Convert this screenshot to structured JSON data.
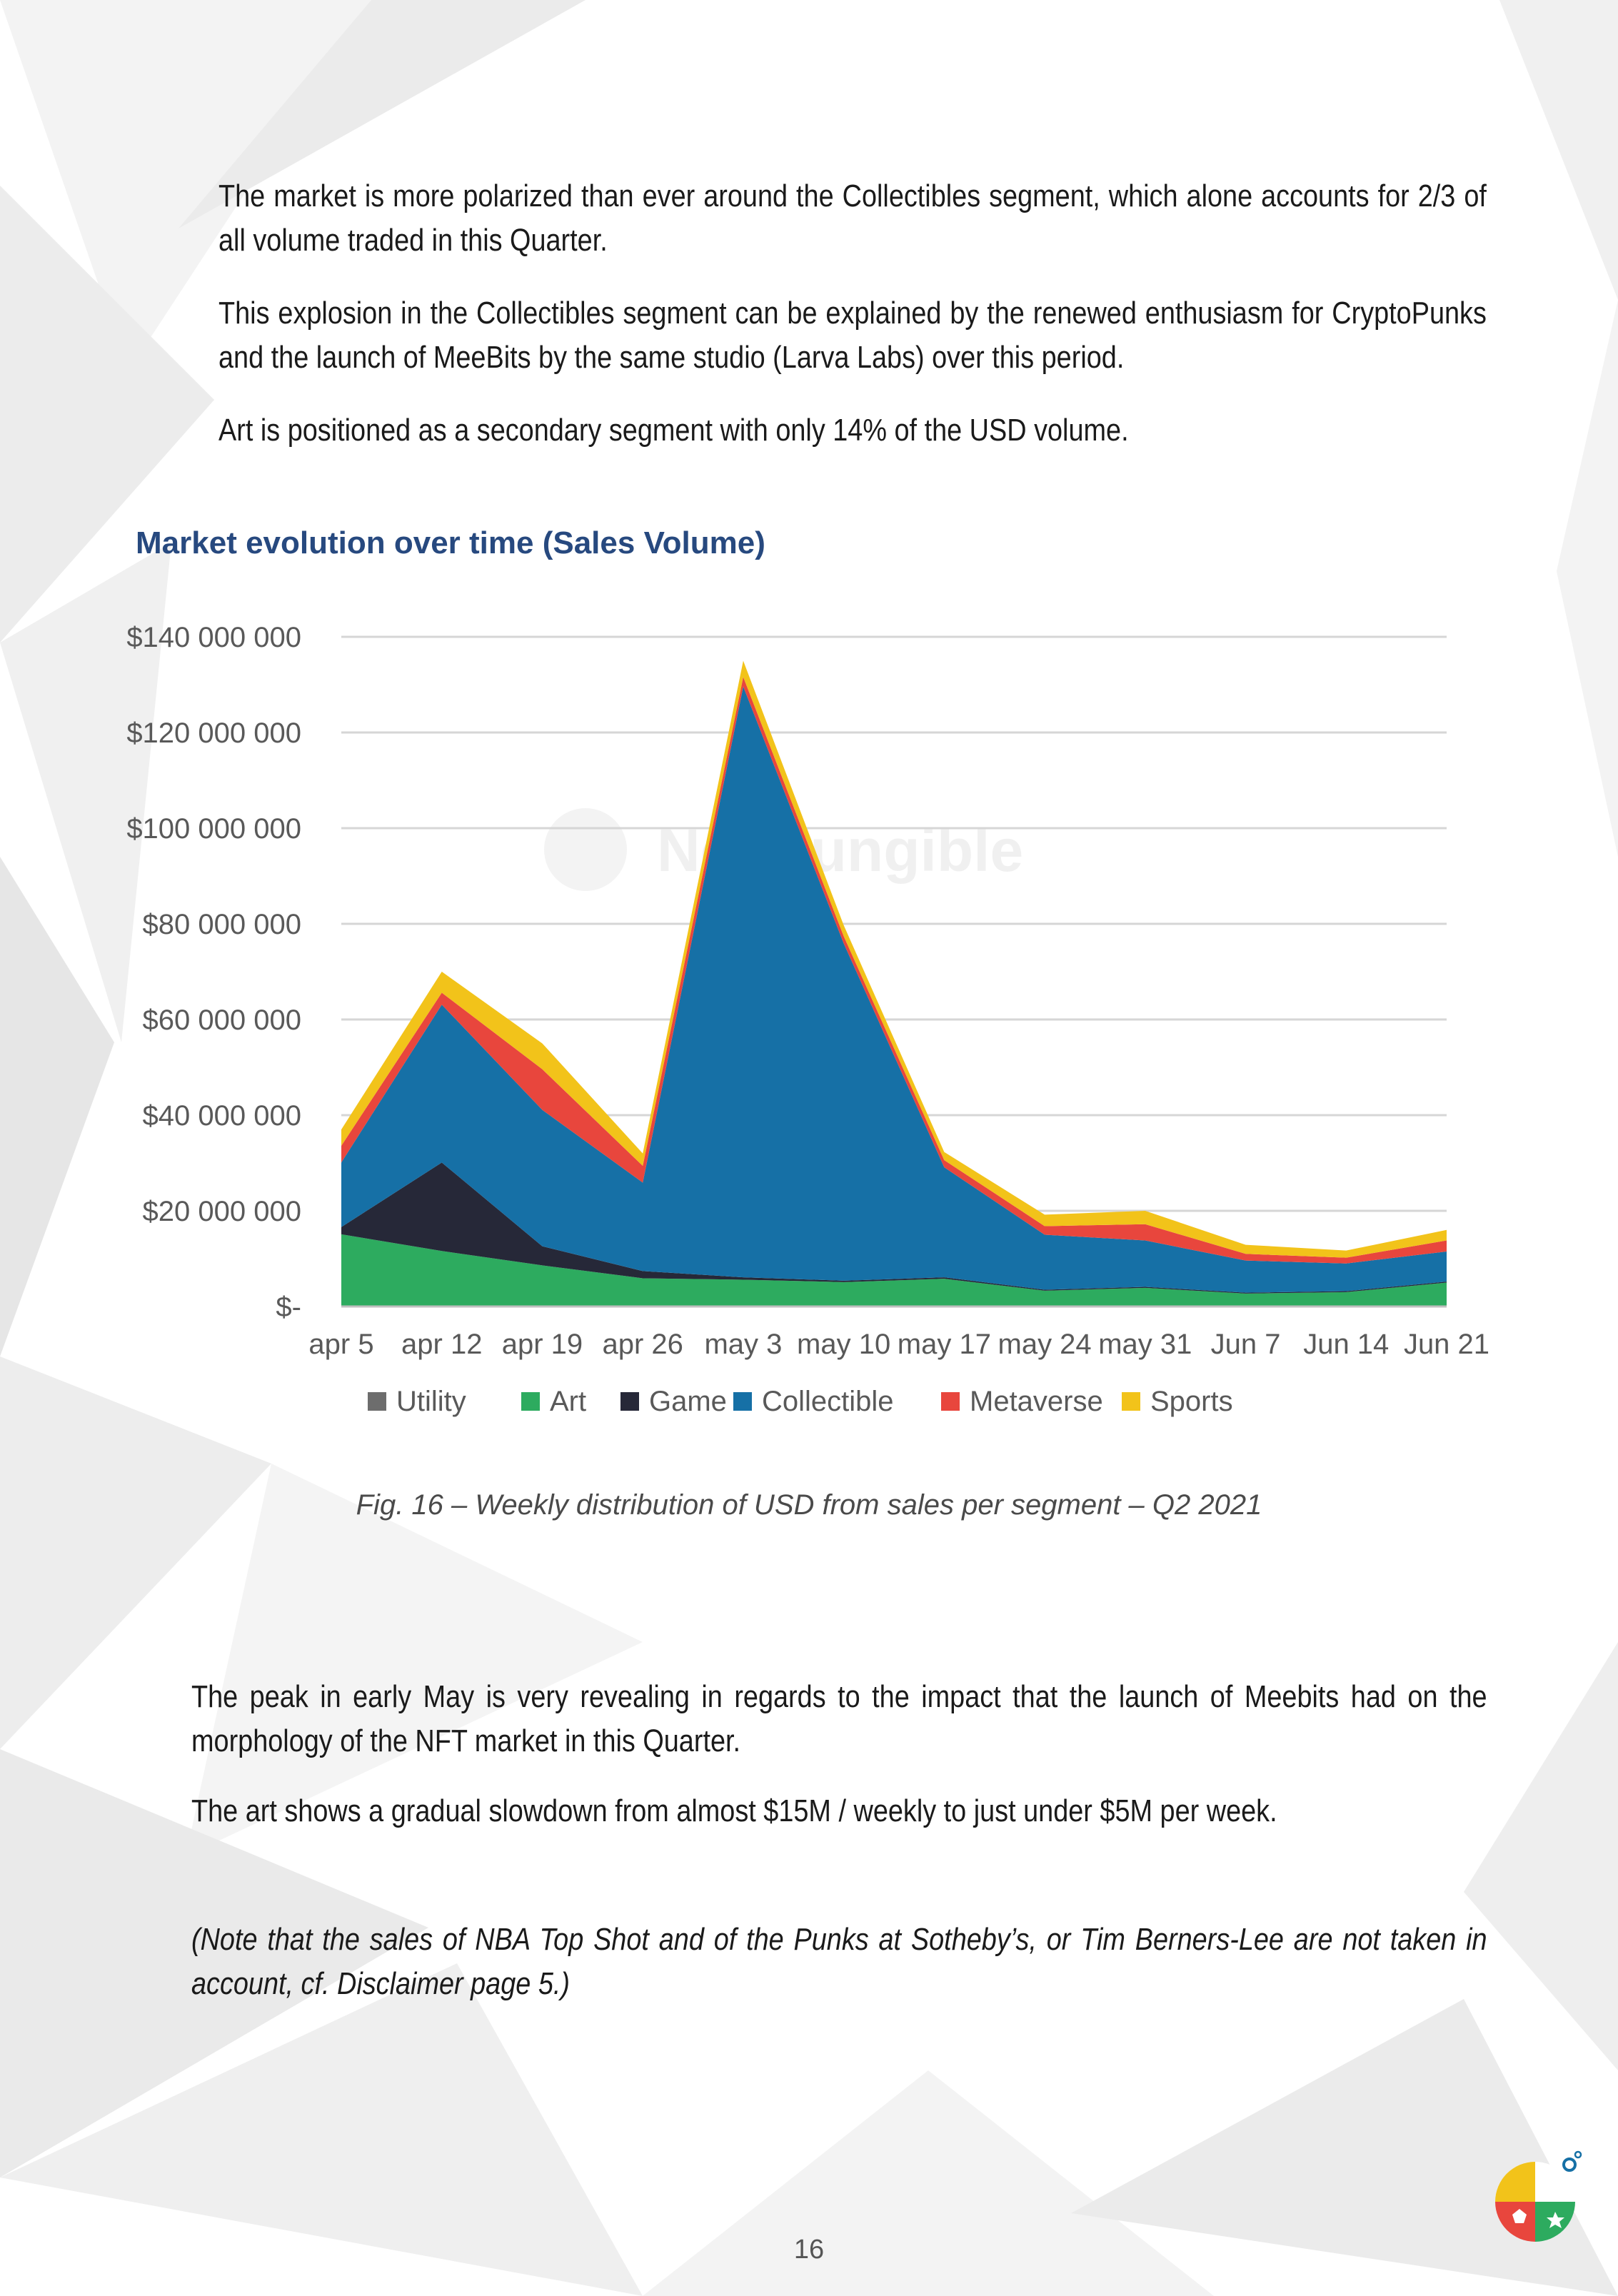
{
  "paragraphs_top": [
    "The market is more polarized than ever around the Collectibles segment, which alone accounts for 2/3 of all volume traded in this Quarter.",
    "This explosion in the Collectibles segment can be explained by the renewed enthusiasm for CryptoPunks and the launch of MeeBits by the same studio (Larva Labs) over this period.",
    "Art is positioned as a secondary segment with only 14% of the USD volume."
  ],
  "watermark": "NonFungible",
  "figure_caption": "Fig. 16 – Weekly distribution of USD from sales per segment – Q2 2021",
  "paragraphs_bottom": [
    "The peak in early May is very revealing in regards to the impact that the launch of Meebits had on the morphology of the NFT market in this Quarter.",
    "The art shows a gradual slowdown from almost $15M / weekly to just under $5M per week."
  ],
  "note": "(Note that the sales of NBA Top Shot and of the Punks at Sotheby’s, or Tim Berners-Lee are not taken in account, cf. Disclaimer page 5.)",
  "page_number": "16",
  "chart_data": {
    "type": "area",
    "stacked": true,
    "title": "Market evolution over time (Sales Volume)",
    "xlabel": "",
    "ylabel": "",
    "x": [
      "apr 5",
      "apr 12",
      "apr 19",
      "apr 26",
      "may 3",
      "may 10",
      "may 17",
      "may 24",
      "may 31",
      "Jun 7",
      "Jun 14",
      "Jun 21"
    ],
    "ylim": [
      0,
      140000000
    ],
    "y_ticks": [
      0,
      20000000,
      40000000,
      60000000,
      80000000,
      100000000,
      120000000,
      140000000
    ],
    "y_tick_labels": [
      "$-",
      "$20 000 000",
      "$40 000 000",
      "$60 000 000",
      "$80 000 000",
      "$100 000 000",
      "$120 000 000",
      "$140 000 000"
    ],
    "grid": true,
    "legend_position": "bottom",
    "series": [
      {
        "name": "Utility",
        "color": "#6d6d6d",
        "values": [
          100000,
          100000,
          100000,
          100000,
          100000,
          100000,
          100000,
          100000,
          100000,
          100000,
          100000,
          100000
        ]
      },
      {
        "name": "Art",
        "color": "#2dab5f",
        "values": [
          15000000,
          11500000,
          8500000,
          5800000,
          5500000,
          5000000,
          5700000,
          3200000,
          3800000,
          2600000,
          2900000,
          4900000
        ]
      },
      {
        "name": "Game",
        "color": "#262838",
        "values": [
          1500000,
          18500000,
          4000000,
          1500000,
          500000,
          300000,
          300000,
          200000,
          200000,
          200000,
          200000,
          200000
        ]
      },
      {
        "name": "Collectible",
        "color": "#1670a6",
        "values": [
          13500000,
          33000000,
          28500000,
          18500000,
          123500000,
          70500000,
          23000000,
          11500000,
          9700000,
          6700000,
          5800000,
          6300000
        ]
      },
      {
        "name": "Metaverse",
        "color": "#e8463d",
        "values": [
          3500000,
          2500000,
          8500000,
          3500000,
          2000000,
          1500000,
          1500000,
          1800000,
          3400000,
          1400000,
          1200000,
          2300000
        ]
      },
      {
        "name": "Sports",
        "color": "#f2c31a",
        "values": [
          3400000,
          4400000,
          5400000,
          2600000,
          3400000,
          2300000,
          1700000,
          2400000,
          2800000,
          1900000,
          1500000,
          2200000
        ]
      }
    ]
  }
}
